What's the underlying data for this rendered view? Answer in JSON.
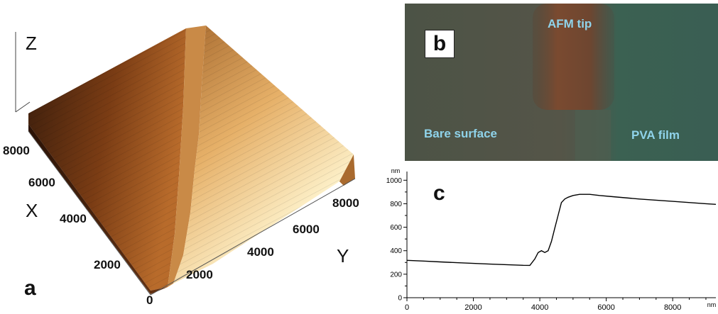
{
  "panel_a": {
    "label": "a",
    "axis_z": "Z",
    "axis_x": "X",
    "axis_y": "Y",
    "x_ticks": [
      "8000",
      "6000",
      "4000",
      "2000"
    ],
    "y_ticks": [
      "8000",
      "6000",
      "4000",
      "2000"
    ],
    "origin_tick": "0"
  },
  "panel_b": {
    "label": "b",
    "afm_tip": "AFM tip",
    "bare_surface": "Bare surface",
    "pva_film": "PVA film",
    "colors": {
      "left": "#53574a",
      "right": "#3a5f53",
      "tip": "#6e4a34",
      "text": "#8fd3ea"
    }
  },
  "chart_data": {
    "type": "line",
    "label": "c",
    "xlabel": "nm",
    "ylabel": "nm",
    "xlim": [
      0,
      9300
    ],
    "ylim": [
      0,
      1050
    ],
    "x_ticks": [
      0,
      2000,
      4000,
      6000,
      8000
    ],
    "y_ticks": [
      0,
      200,
      400,
      600,
      800,
      1000
    ],
    "series": [
      {
        "x": [
          0,
          500,
          1000,
          1500,
          2000,
          2500,
          3000,
          3500,
          3700,
          3850,
          3950,
          4050,
          4150,
          4250,
          4350,
          4450,
          4550,
          4650,
          4750,
          4850,
          5000,
          5200,
          5500,
          5800,
          6200,
          7000,
          8000,
          9000,
          9300
        ],
        "values": [
          318,
          312,
          305,
          298,
          292,
          286,
          281,
          276,
          275,
          330,
          385,
          400,
          385,
          400,
          480,
          590,
          700,
          810,
          840,
          855,
          870,
          880,
          880,
          870,
          860,
          840,
          820,
          800,
          795
        ]
      }
    ]
  }
}
